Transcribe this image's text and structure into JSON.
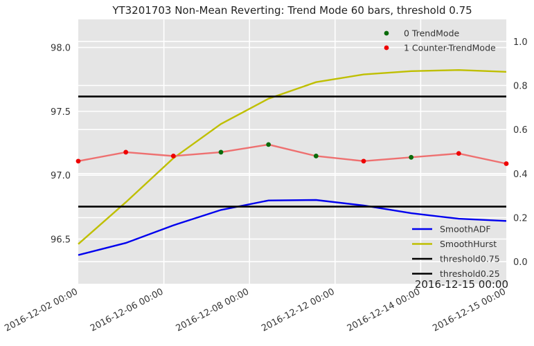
{
  "chart_data": {
    "type": "line",
    "title": "YT3201703 Non-Mean Reverting: Trend Mode 60 bars, threshold 0.75",
    "x_tick_labels": [
      "2016-12-02 00:00",
      "2016-12-06 00:00",
      "2016-12-08 00:00",
      "2016-12-12 00:00",
      "2016-12-14 00:00",
      "2016-12-15 00:00"
    ],
    "corner_label": "2016-12-15 00:00",
    "left_axis": {
      "ylim": [
        96.15,
        98.22
      ],
      "ticks": [
        "96.5",
        "97.0",
        "97.5",
        "98.0"
      ],
      "tick_values": [
        96.5,
        97.0,
        97.5,
        98.0
      ]
    },
    "right_axis": {
      "ylim": [
        -0.1,
        1.1
      ],
      "ticks": [
        "0.0",
        "0.2",
        "0.4",
        "0.6",
        "0.8",
        "1.0"
      ],
      "tick_values": [
        0.0,
        0.2,
        0.4,
        0.6,
        0.8,
        1.0
      ]
    },
    "grid": true,
    "bar_index": [
      0,
      1,
      2,
      3,
      4,
      5,
      6,
      7,
      8,
      9
    ],
    "price": {
      "color": "#ee7070",
      "values": [
        97.11,
        97.18,
        97.15,
        97.18,
        97.24,
        97.15,
        97.11,
        97.14,
        97.17,
        97.09
      ],
      "mode": [
        1,
        1,
        1,
        0,
        0,
        0,
        1,
        0,
        1,
        1
      ]
    },
    "scatter_legend": [
      {
        "label": "0 TrendMode",
        "color": "#0a6b0a"
      },
      {
        "label": "1 Counter-TrendMode",
        "color": "#ee0000"
      }
    ],
    "series": [
      {
        "name": "SmoothADF",
        "color": "#0000ee",
        "values": [
          0.03,
          0.085,
          0.165,
          0.235,
          0.278,
          0.28,
          0.255,
          0.22,
          0.195,
          0.185
        ]
      },
      {
        "name": "SmoothHurst",
        "color": "#bfbf00",
        "values": [
          0.08,
          0.27,
          0.47,
          0.625,
          0.74,
          0.815,
          0.85,
          0.865,
          0.87,
          0.862
        ]
      },
      {
        "name": "threshold0.75",
        "color": "#000000",
        "values": [
          0.75,
          0.75,
          0.75,
          0.75,
          0.75,
          0.75,
          0.75,
          0.75,
          0.75,
          0.75
        ]
      },
      {
        "name": "threshold0.25",
        "color": "#000000",
        "values": [
          0.25,
          0.25,
          0.25,
          0.25,
          0.25,
          0.25,
          0.25,
          0.25,
          0.25,
          0.25
        ]
      }
    ]
  }
}
